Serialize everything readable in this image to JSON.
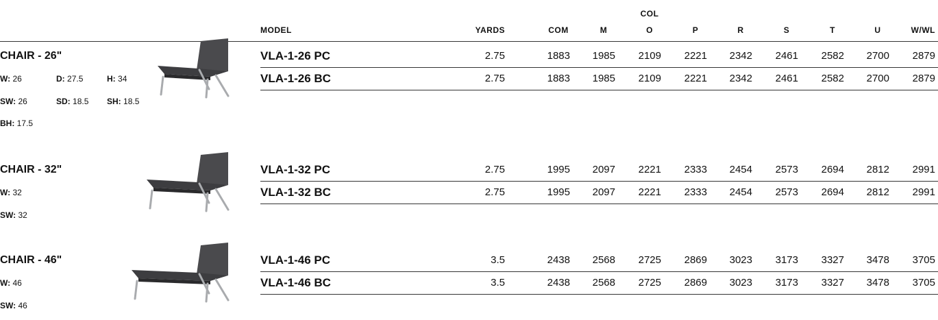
{
  "header": {
    "group_label": "COL",
    "columns": [
      "MODEL",
      "YARDS",
      "COM",
      "M",
      "O",
      "P",
      "R",
      "S",
      "T",
      "U",
      "W/WL"
    ]
  },
  "products": [
    {
      "title": "CHAIR - 26\"",
      "specs": [
        [
          {
            "label": "W:",
            "value": 26
          },
          {
            "label": "D:",
            "value": 27.5
          },
          {
            "label": "H:",
            "value": 34
          }
        ],
        [
          {
            "label": "SW:",
            "value": 26
          },
          {
            "label": "SD:",
            "value": 18.5
          },
          {
            "label": "SH:",
            "value": 18.5
          }
        ],
        [
          {
            "label": "BH:",
            "value": 17.5
          }
        ]
      ],
      "rows": [
        [
          "VLA-1-26 PC",
          2.75,
          1883,
          1985,
          2109,
          2221,
          2342,
          2461,
          2582,
          2700,
          2879
        ],
        [
          "VLA-1-26 BC",
          2.75,
          1883,
          1985,
          2109,
          2221,
          2342,
          2461,
          2582,
          2700,
          2879
        ]
      ]
    },
    {
      "title": "CHAIR - 32\"",
      "specs": [
        [
          {
            "label": "W:",
            "value": 32
          }
        ],
        [
          {
            "label": "SW:",
            "value": 32
          }
        ]
      ],
      "rows": [
        [
          "VLA-1-32 PC",
          2.75,
          1995,
          2097,
          2221,
          2333,
          2454,
          2573,
          2694,
          2812,
          2991
        ],
        [
          "VLA-1-32 BC",
          2.75,
          1995,
          2097,
          2221,
          2333,
          2454,
          2573,
          2694,
          2812,
          2991
        ]
      ]
    },
    {
      "title": "CHAIR - 46\"",
      "specs": [
        [
          {
            "label": "W:",
            "value": 46
          }
        ],
        [
          {
            "label": "SW:",
            "value": 46
          }
        ]
      ],
      "rows": [
        [
          "VLA-1-46 PC",
          3.5,
          2438,
          2568,
          2725,
          2869,
          3023,
          3173,
          3327,
          3478,
          3705
        ],
        [
          "VLA-1-46 BC",
          3.5,
          2438,
          2568,
          2725,
          2869,
          3023,
          3173,
          3327,
          3478,
          3705
        ]
      ]
    }
  ]
}
